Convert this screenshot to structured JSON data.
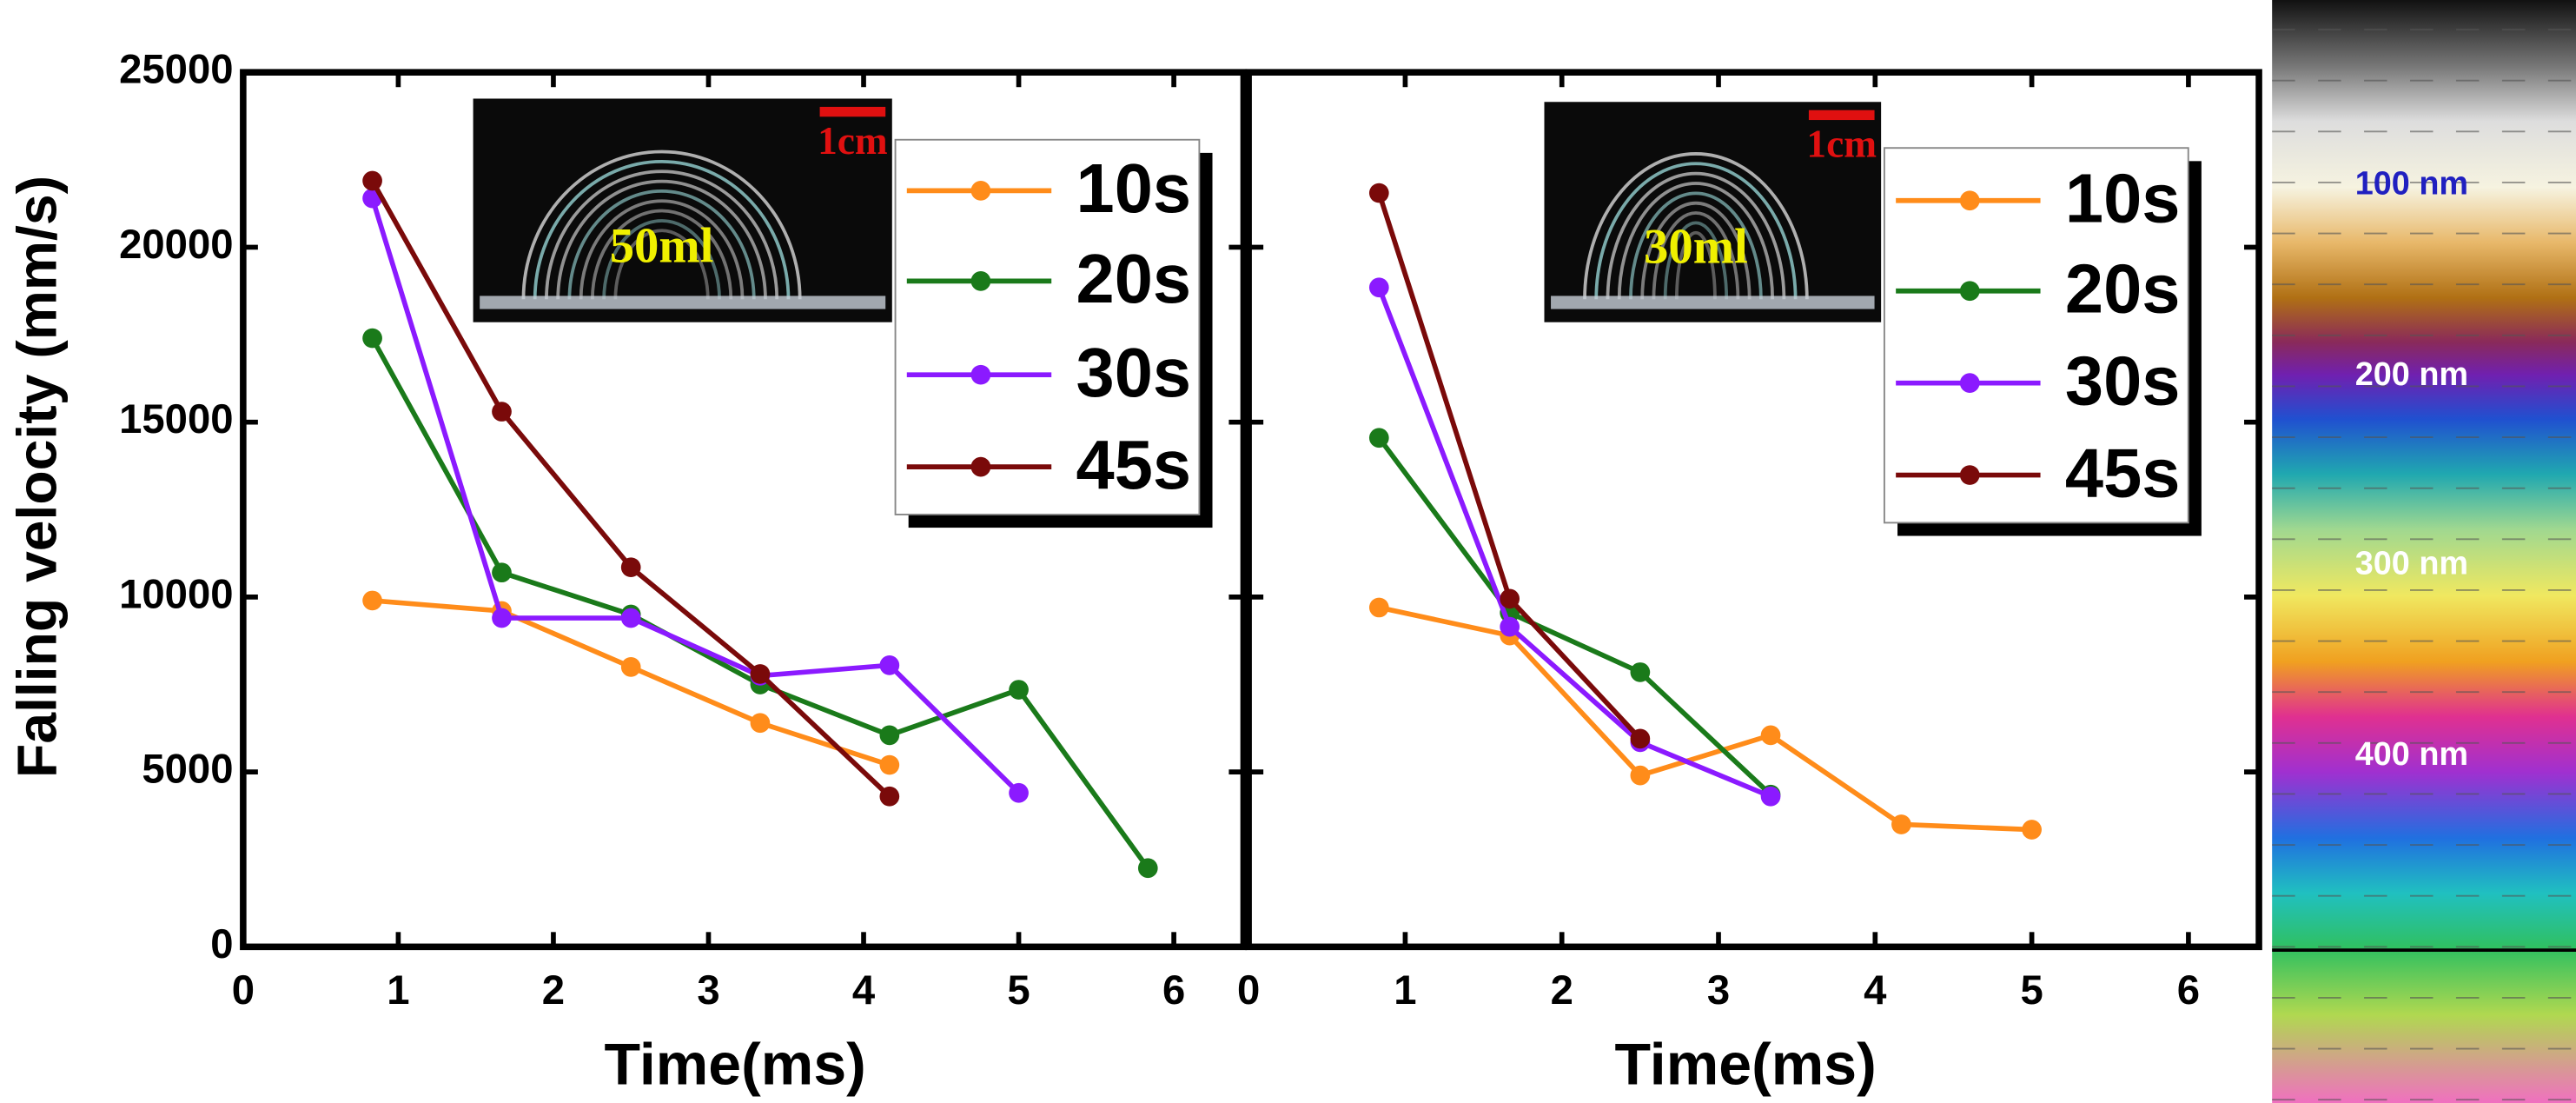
{
  "chart_data": [
    {
      "type": "line",
      "xlabel": "Time(ms)",
      "ylabel": "Falling velocity (mm/s)",
      "xlim": [
        0,
        6.45
      ],
      "ylim": [
        0,
        25000
      ],
      "xticks": [
        0,
        1,
        2,
        3,
        4,
        5,
        6
      ],
      "yticks": [
        0,
        5000,
        10000,
        15000,
        20000,
        25000
      ],
      "inset_labels": [
        "50ml",
        "1cm"
      ],
      "series": [
        {
          "name": "10s",
          "color": "#ff8c1a",
          "x": [
            0.833,
            1.667,
            2.5,
            3.333,
            4.167
          ],
          "values": [
            9900,
            9600,
            8000,
            6400,
            5200
          ]
        },
        {
          "name": "20s",
          "color": "#1a7a1a",
          "x": [
            0.833,
            1.667,
            2.5,
            3.333,
            4.167,
            5,
            5.833
          ],
          "values": [
            17400,
            10700,
            9500,
            7500,
            6050,
            7350,
            2250
          ]
        },
        {
          "name": "30s",
          "color": "#8b1aff",
          "x": [
            0.833,
            1.667,
            2.5,
            3.333,
            4.167,
            5
          ],
          "values": [
            21400,
            9400,
            9400,
            7750,
            8050,
            4400
          ]
        },
        {
          "name": "45s",
          "color": "#7a0a0a",
          "x": [
            0.833,
            1.667,
            2.5,
            3.333,
            4.167
          ],
          "values": [
            21900,
            15300,
            10850,
            7800,
            4300
          ]
        }
      ]
    },
    {
      "type": "line",
      "xlabel": "Time(ms)",
      "xlim": [
        0,
        6.45
      ],
      "ylim": [
        0,
        25000
      ],
      "xticks": [
        0,
        1,
        2,
        3,
        4,
        5,
        6
      ],
      "inset_labels": [
        "30ml",
        "1cm"
      ],
      "series": [
        {
          "name": "10s",
          "color": "#ff8c1a",
          "x": [
            0.833,
            1.667,
            2.5,
            3.333,
            4.167,
            5
          ],
          "values": [
            9700,
            8900,
            4900,
            6050,
            3500,
            3350
          ]
        },
        {
          "name": "20s",
          "color": "#1a7a1a",
          "x": [
            0.833,
            1.667,
            2.5,
            3.333
          ],
          "values": [
            14550,
            9550,
            7850,
            4350
          ]
        },
        {
          "name": "30s",
          "color": "#8b1aff",
          "x": [
            0.833,
            1.667,
            2.5,
            3.333
          ],
          "values": [
            18850,
            9150,
            5850,
            4300
          ]
        },
        {
          "name": "45s",
          "color": "#7a0a0a",
          "x": [
            0.833,
            1.667,
            2.5
          ],
          "values": [
            21550,
            9950,
            5950
          ]
        }
      ]
    }
  ],
  "colorbar": {
    "labels": [
      "100 nm",
      "200 nm",
      "300 nm",
      "400 nm"
    ]
  }
}
